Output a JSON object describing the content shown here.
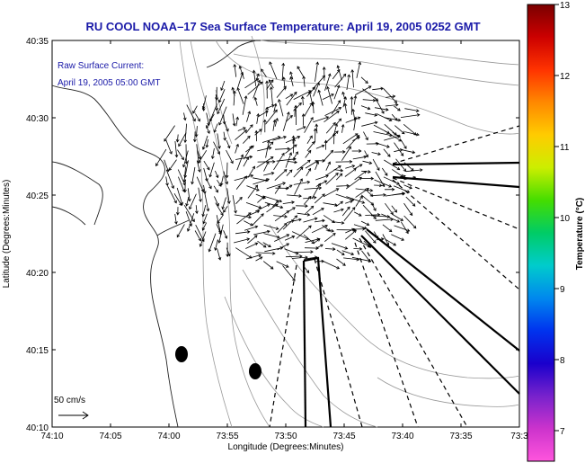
{
  "title": "RU COOL  NOAA–17  Sea Surface Temperature:  April 19, 2005 0252 GMT",
  "current_legend": {
    "line1": "Raw Surface Current:",
    "line2": "April 19, 2005 05:00 GMT"
  },
  "scale_label": "50 cm/s",
  "x_axis": {
    "label": "Longitude (Degrees:Minutes)",
    "ticks": [
      "74:10",
      "74:05",
      "74:00",
      "73:55",
      "73:50",
      "73:45",
      "73:40",
      "73:35",
      "73:3"
    ]
  },
  "y_axis": {
    "label": "Latitude (Degrees:Minutes)",
    "ticks": [
      "40:35",
      "40:30",
      "40:25",
      "40:20",
      "40:15",
      "40:10"
    ]
  },
  "colorbar": {
    "label": "Temperature (°C)",
    "ticks": [
      "13",
      "12",
      "11",
      "10",
      "9",
      "8",
      "7"
    ],
    "colors": [
      "#7a0000",
      "#cc0000",
      "#ff3300",
      "#ff8800",
      "#ffcc00",
      "#ccee00",
      "#44dd00",
      "#00cc66",
      "#00cccc",
      "#0088ee",
      "#0033ee",
      "#1a00cc",
      "#7722cc",
      "#cc33cc",
      "#ff55dd"
    ]
  }
}
